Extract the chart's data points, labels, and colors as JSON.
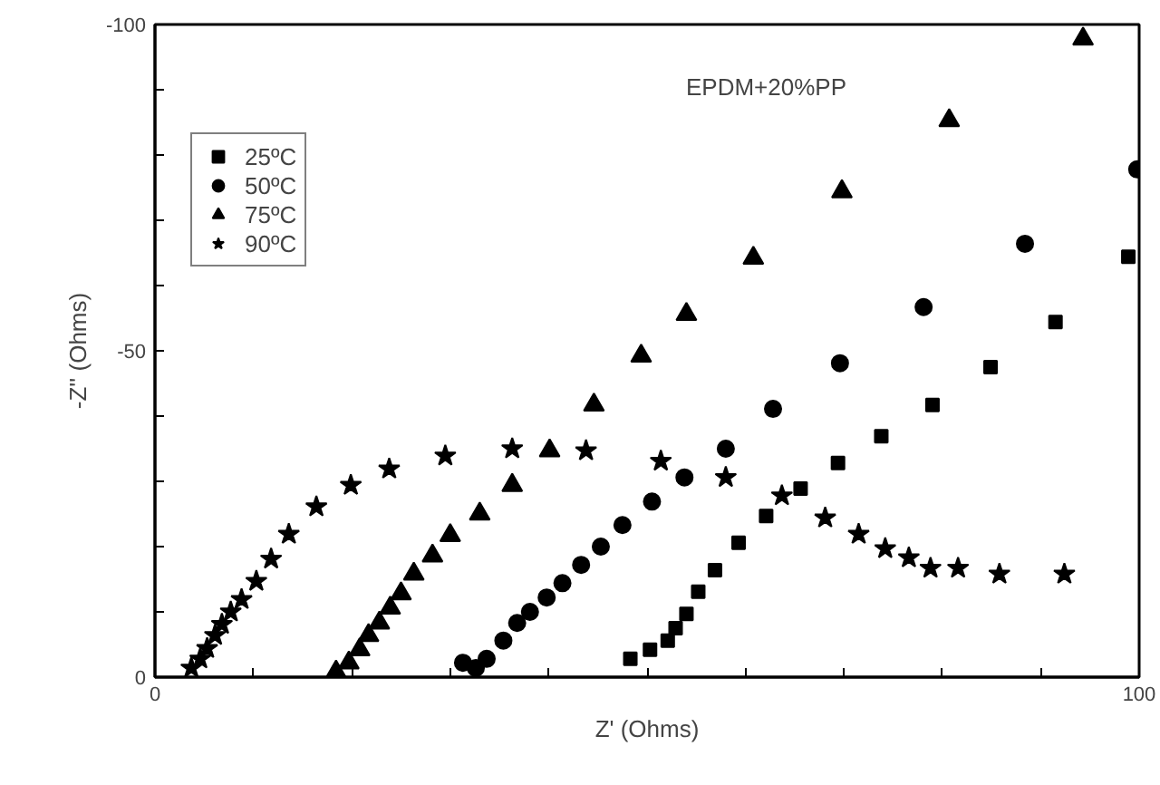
{
  "chart_data": {
    "type": "scatter",
    "xlabel": "Z' (Ohms)",
    "ylabel": "-Z'' (Ohms)",
    "annotations": [
      "EPDM+20%PP"
    ],
    "xlim": [
      0,
      100
    ],
    "ylim": [
      0,
      -100
    ],
    "xticks": [
      0,
      {
        "value": 10,
        "label": null
      },
      {
        "value": 20,
        "label": null
      },
      {
        "value": 30,
        "label": null
      },
      {
        "value": 40,
        "label": null
      },
      {
        "value": 50,
        "label": null
      },
      {
        "value": 60,
        "label": null
      },
      {
        "value": 70,
        "label": null
      },
      {
        "value": 80,
        "label": null
      },
      {
        "value": 90,
        "label": null
      },
      100
    ],
    "yticks": [
      0,
      {
        "value": -10,
        "label": null
      },
      {
        "value": -20,
        "label": null
      },
      {
        "value": -30,
        "label": null
      },
      {
        "value": -40,
        "label": null
      },
      -50,
      {
        "value": -60,
        "label": null
      },
      {
        "value": -70,
        "label": null
      },
      {
        "value": -80,
        "label": null
      },
      {
        "value": -90,
        "label": null
      },
      -100
    ],
    "grid": false,
    "legend": "top left",
    "series": [
      {
        "name": "25ºC",
        "color": "#000000",
        "marker": "square",
        "x": [
          48.3,
          50.3,
          52.1,
          52.9,
          54.0,
          55.2,
          56.9,
          59.3,
          62.1,
          65.6,
          69.4,
          73.8,
          79.0,
          84.9,
          91.5,
          98.9
        ],
        "values": [
          -2.8,
          -4.2,
          -5.6,
          -7.5,
          -9.7,
          -13.1,
          -16.4,
          -20.6,
          -24.7,
          -28.9,
          -32.8,
          -36.9,
          -41.7,
          -47.5,
          -54.4,
          -64.4
        ]
      },
      {
        "name": "50ºC",
        "color": "#000000",
        "marker": "circle",
        "x": [
          31.3,
          32.6,
          33.7,
          35.4,
          36.8,
          38.1,
          39.8,
          41.4,
          43.3,
          45.3,
          47.5,
          50.5,
          53.8,
          58.0,
          62.8,
          69.6,
          78.1,
          88.4,
          99.8
        ],
        "values": [
          -2.2,
          -1.4,
          -2.8,
          -5.6,
          -8.3,
          -10.0,
          -12.2,
          -14.4,
          -17.2,
          -20.0,
          -23.3,
          -26.9,
          -30.6,
          -35.0,
          -41.1,
          -48.1,
          -56.7,
          -66.4,
          -77.8
        ]
      },
      {
        "name": "75ºC",
        "color": "#000000",
        "marker": "triangle",
        "x": [
          18.4,
          19.7,
          20.8,
          21.7,
          22.8,
          23.9,
          25.0,
          26.3,
          28.2,
          30.0,
          33.0,
          36.3,
          40.1,
          44.6,
          49.4,
          54.0,
          60.8,
          69.8,
          80.7,
          94.3
        ],
        "values": [
          -0.8,
          -2.2,
          -4.2,
          -6.4,
          -8.3,
          -10.6,
          -12.8,
          -15.8,
          -18.6,
          -21.7,
          -25.0,
          -29.4,
          -34.7,
          -41.7,
          -49.2,
          -55.6,
          -64.2,
          -74.4,
          -85.3,
          -97.8
        ]
      },
      {
        "name": "90ºC",
        "color": "#000000",
        "marker": "star",
        "x": [
          3.7,
          4.6,
          5.3,
          6.1,
          6.8,
          7.7,
          8.8,
          10.3,
          11.8,
          13.6,
          16.4,
          19.9,
          23.8,
          29.5,
          36.3,
          43.8,
          51.4,
          58.0,
          63.7,
          68.1,
          71.5,
          74.2,
          76.6,
          78.8,
          81.6,
          85.8,
          92.4
        ],
        "values": [
          -1.4,
          -2.8,
          -4.4,
          -6.4,
          -8.1,
          -10.0,
          -11.9,
          -14.7,
          -18.1,
          -21.9,
          -26.1,
          -29.4,
          -31.9,
          -33.9,
          -35.0,
          -34.7,
          -33.1,
          -30.6,
          -27.8,
          -24.4,
          -21.9,
          -19.7,
          -18.3,
          -16.7,
          -16.7,
          -15.8,
          -15.8
        ]
      }
    ]
  }
}
